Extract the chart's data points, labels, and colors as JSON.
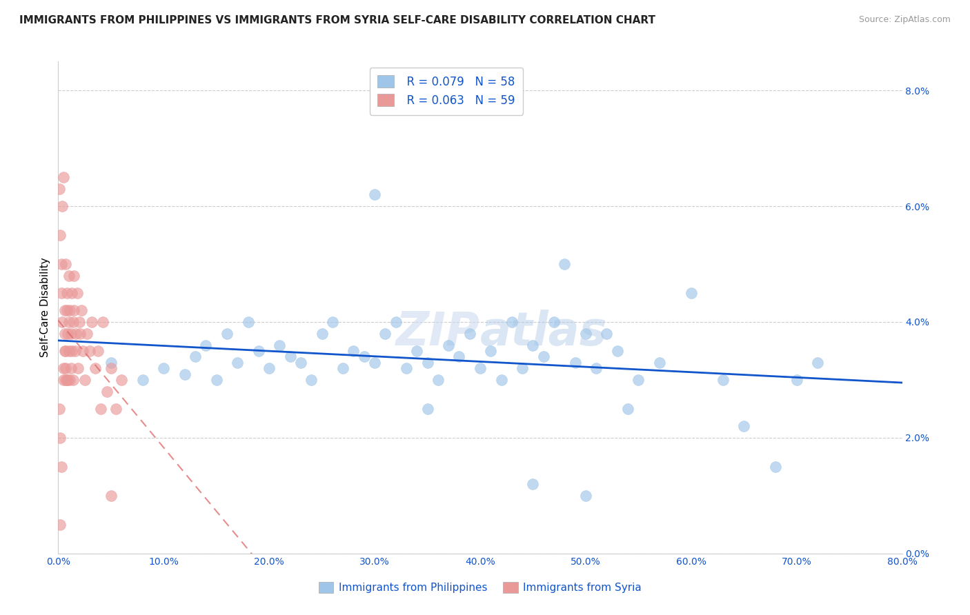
{
  "title": "IMMIGRANTS FROM PHILIPPINES VS IMMIGRANTS FROM SYRIA SELF-CARE DISABILITY CORRELATION CHART",
  "source_text": "Source: ZipAtlas.com",
  "ylabel": "Self-Care Disability",
  "xlim": [
    0.0,
    0.8
  ],
  "ylim": [
    0.0,
    0.085
  ],
  "xtick_vals": [
    0.0,
    0.1,
    0.2,
    0.3,
    0.4,
    0.5,
    0.6,
    0.7,
    0.8
  ],
  "xtick_labels": [
    "0.0%",
    "10.0%",
    "20.0%",
    "30.0%",
    "40.0%",
    "50.0%",
    "60.0%",
    "70.0%",
    "80.0%"
  ],
  "ytick_vals": [
    0.0,
    0.02,
    0.04,
    0.06,
    0.08
  ],
  "ytick_labels": [
    "0.0%",
    "2.0%",
    "4.0%",
    "6.0%",
    "8.0%"
  ],
  "philippines_color": "#9fc5e8",
  "syria_color": "#ea9999",
  "philippines_line_color": "#1155cc",
  "syria_line_color": "#e06666",
  "legend_R_philippines": "R = 0.079",
  "legend_N_philippines": "N = 58",
  "legend_R_syria": "R = 0.063",
  "legend_N_syria": "N = 59",
  "watermark": "ZIPatlas",
  "philippines_x": [
    0.05,
    0.08,
    0.1,
    0.12,
    0.13,
    0.14,
    0.15,
    0.16,
    0.17,
    0.18,
    0.19,
    0.2,
    0.21,
    0.22,
    0.23,
    0.24,
    0.25,
    0.26,
    0.27,
    0.28,
    0.29,
    0.3,
    0.31,
    0.32,
    0.33,
    0.34,
    0.35,
    0.36,
    0.37,
    0.38,
    0.39,
    0.4,
    0.41,
    0.42,
    0.43,
    0.44,
    0.45,
    0.46,
    0.47,
    0.48,
    0.49,
    0.5,
    0.51,
    0.52,
    0.53,
    0.54,
    0.55,
    0.57,
    0.6,
    0.63,
    0.65,
    0.68,
    0.7,
    0.72,
    0.3,
    0.35,
    0.45,
    0.5
  ],
  "philippines_y": [
    0.033,
    0.03,
    0.032,
    0.031,
    0.034,
    0.036,
    0.03,
    0.038,
    0.033,
    0.04,
    0.035,
    0.032,
    0.036,
    0.034,
    0.033,
    0.03,
    0.038,
    0.04,
    0.032,
    0.035,
    0.034,
    0.033,
    0.038,
    0.04,
    0.032,
    0.035,
    0.033,
    0.03,
    0.036,
    0.034,
    0.038,
    0.032,
    0.035,
    0.03,
    0.04,
    0.032,
    0.036,
    0.034,
    0.04,
    0.05,
    0.033,
    0.038,
    0.032,
    0.038,
    0.035,
    0.025,
    0.03,
    0.033,
    0.045,
    0.03,
    0.022,
    0.015,
    0.03,
    0.033,
    0.062,
    0.025,
    0.012,
    0.01
  ],
  "syria_x": [
    0.001,
    0.002,
    0.003,
    0.003,
    0.004,
    0.004,
    0.005,
    0.005,
    0.005,
    0.006,
    0.006,
    0.006,
    0.007,
    0.007,
    0.007,
    0.007,
    0.008,
    0.008,
    0.008,
    0.009,
    0.009,
    0.01,
    0.01,
    0.01,
    0.011,
    0.011,
    0.012,
    0.012,
    0.013,
    0.013,
    0.014,
    0.014,
    0.015,
    0.015,
    0.016,
    0.017,
    0.018,
    0.019,
    0.02,
    0.021,
    0.022,
    0.023,
    0.025,
    0.027,
    0.03,
    0.032,
    0.035,
    0.038,
    0.042,
    0.046,
    0.05,
    0.055,
    0.06,
    0.001,
    0.002,
    0.003,
    0.04,
    0.05,
    0.002
  ],
  "syria_y": [
    0.063,
    0.055,
    0.05,
    0.045,
    0.04,
    0.06,
    0.065,
    0.03,
    0.032,
    0.035,
    0.038,
    0.042,
    0.03,
    0.032,
    0.035,
    0.05,
    0.03,
    0.045,
    0.042,
    0.038,
    0.03,
    0.035,
    0.04,
    0.048,
    0.03,
    0.042,
    0.032,
    0.038,
    0.045,
    0.035,
    0.03,
    0.04,
    0.042,
    0.048,
    0.035,
    0.038,
    0.045,
    0.032,
    0.04,
    0.038,
    0.042,
    0.035,
    0.03,
    0.038,
    0.035,
    0.04,
    0.032,
    0.035,
    0.04,
    0.028,
    0.032,
    0.025,
    0.03,
    0.025,
    0.02,
    0.015,
    0.025,
    0.01,
    0.005
  ]
}
